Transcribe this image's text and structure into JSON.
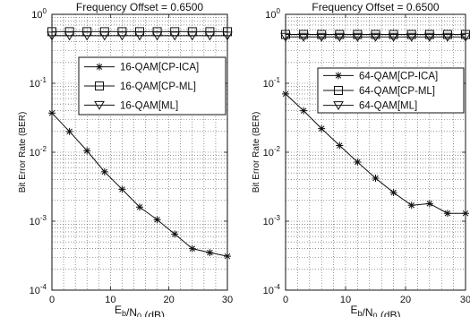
{
  "chart_data": [
    {
      "type": "line",
      "title": "Frequency Offset = 0.6500",
      "xlabel": "E_b/N_0 (dB)",
      "ylabel": "Bit Error Rate (BER)",
      "xlim": [
        0,
        30
      ],
      "ylim": [
        0.0001,
        1
      ],
      "yscale": "log",
      "grid": true,
      "legend_position": "top-right",
      "x_ticks": [
        "0",
        "10",
        "20",
        "30"
      ],
      "y_ticks": [
        {
          "base": "10",
          "exp": "0"
        },
        {
          "base": "10",
          "exp": "-1"
        },
        {
          "base": "10",
          "exp": "-2"
        },
        {
          "base": "10",
          "exp": "-3"
        },
        {
          "base": "10",
          "exp": "-4"
        }
      ],
      "series": [
        {
          "name": "16-QAM[CP-ICA]",
          "marker": "star",
          "x": [
            0,
            3,
            6,
            9,
            12,
            15,
            18,
            21,
            24,
            27,
            30
          ],
          "y": [
            0.037,
            0.02,
            0.0105,
            0.0052,
            0.0029,
            0.0016,
            0.00105,
            0.00065,
            0.0004,
            0.00035,
            0.00031
          ]
        },
        {
          "name": "16-QAM[CP-ML]",
          "marker": "square",
          "x": [
            0,
            3,
            6,
            9,
            12,
            15,
            18,
            21,
            24,
            27,
            30
          ],
          "y": [
            0.56,
            0.56,
            0.56,
            0.56,
            0.56,
            0.56,
            0.56,
            0.56,
            0.56,
            0.56,
            0.56
          ]
        },
        {
          "name": "16-QAM[ML]",
          "marker": "triangle-down",
          "x": [
            0,
            3,
            6,
            9,
            12,
            15,
            18,
            21,
            24,
            27,
            30
          ],
          "y": [
            0.49,
            0.49,
            0.49,
            0.49,
            0.49,
            0.49,
            0.49,
            0.49,
            0.49,
            0.49,
            0.49
          ]
        }
      ]
    },
    {
      "type": "line",
      "title": "Frequency Offset = 0.6500",
      "xlabel": "E_b/N_0 (dB)",
      "ylabel": "Bit Error Rate (BER)",
      "xlim": [
        0,
        30
      ],
      "ylim": [
        0.0001,
        1
      ],
      "yscale": "log",
      "grid": true,
      "legend_position": "top-right",
      "x_ticks": [
        "0",
        "10",
        "20",
        "30"
      ],
      "y_ticks": [
        {
          "base": "10",
          "exp": "0"
        },
        {
          "base": "10",
          "exp": "-1"
        },
        {
          "base": "10",
          "exp": "-2"
        },
        {
          "base": "10",
          "exp": "-3"
        },
        {
          "base": "10",
          "exp": "-4"
        }
      ],
      "series": [
        {
          "name": "64-QAM[CP-ICA]",
          "marker": "star",
          "x": [
            0,
            3,
            6,
            9,
            12,
            15,
            18,
            21,
            24,
            27,
            30
          ],
          "y": [
            0.07,
            0.04,
            0.022,
            0.0125,
            0.0072,
            0.0042,
            0.0026,
            0.0017,
            0.0018,
            0.0013,
            0.0013
          ]
        },
        {
          "name": "64-QAM[CP-ML]",
          "marker": "square",
          "x": [
            0,
            3,
            6,
            9,
            12,
            15,
            18,
            21,
            24,
            27,
            30
          ],
          "y": [
            0.51,
            0.51,
            0.51,
            0.51,
            0.51,
            0.51,
            0.51,
            0.51,
            0.51,
            0.51,
            0.51
          ]
        },
        {
          "name": "64-QAM[ML]",
          "marker": "triangle-down",
          "x": [
            0,
            3,
            6,
            9,
            12,
            15,
            18,
            21,
            24,
            27,
            30
          ],
          "y": [
            0.47,
            0.47,
            0.47,
            0.47,
            0.47,
            0.47,
            0.47,
            0.47,
            0.47,
            0.47,
            0.47
          ]
        }
      ]
    }
  ]
}
